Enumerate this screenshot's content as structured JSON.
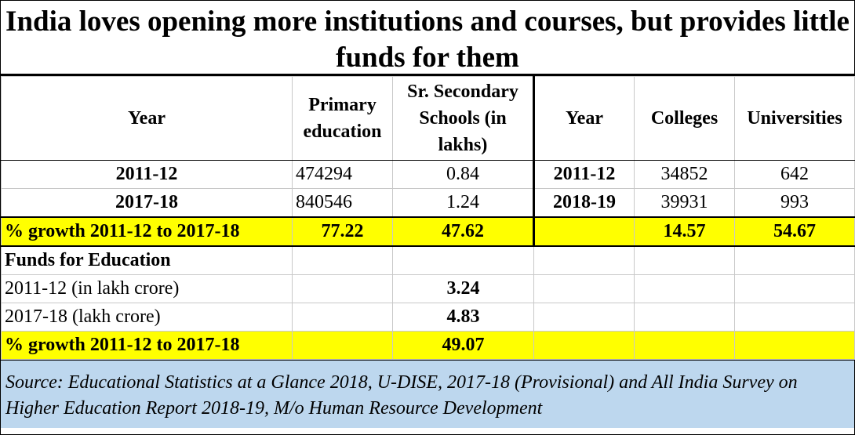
{
  "title": "India loves opening more institutions and courses, but provides little funds for them",
  "headers": {
    "year_left": "Year",
    "primary": "Primary education",
    "sr_secondary": "Sr. Secondary Schools (in lakhs)",
    "year_right": "Year",
    "colleges": "Colleges",
    "universities": "Universities"
  },
  "rows": [
    {
      "year_left": "2011-12",
      "primary": "474294",
      "sr_secondary": "0.84",
      "year_right": "2011-12",
      "colleges": "34852",
      "universities": "642"
    },
    {
      "year_left": "2017-18",
      "primary": "840546",
      "sr_secondary": "1.24",
      "year_right": "2018-19",
      "colleges": "39931",
      "universities": "993"
    }
  ],
  "growth_row": {
    "label": "% growth 2011-12 to 2017-18",
    "primary": "77.22",
    "sr_secondary": "47.62",
    "colleges": "14.57",
    "universities": "54.67"
  },
  "funds": {
    "heading": "Funds for Education",
    "rows": [
      {
        "label": "2011-12 (in lakh crore)",
        "value": "3.24"
      },
      {
        "label": "2017-18 (lakh crore)",
        "value": "4.83"
      }
    ],
    "growth": {
      "label": "% growth 2011-12 to 2017-18",
      "value": "49.07"
    }
  },
  "source": "Source: Educational Statistics at a Glance 2018, U-DISE, 2017-18 (Provisional) and All India Survey on Higher Education Report 2018-19, M/o Human Resource Development",
  "colors": {
    "highlight": "#ffff00",
    "source_bg": "#bdd7ee"
  }
}
